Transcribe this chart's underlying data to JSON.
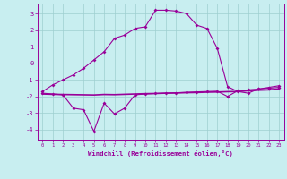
{
  "xlabel": "Windchill (Refroidissement éolien,°C)",
  "background_color": "#c8eef0",
  "grid_color": "#9ecfcf",
  "line_color": "#990099",
  "xlim": [
    -0.5,
    23.5
  ],
  "ylim": [
    -4.6,
    3.6
  ],
  "xticks": [
    0,
    1,
    2,
    3,
    4,
    5,
    6,
    7,
    8,
    9,
    10,
    11,
    12,
    13,
    14,
    15,
    16,
    17,
    18,
    19,
    20,
    21,
    22,
    23
  ],
  "yticks": [
    -4,
    -3,
    -2,
    -1,
    0,
    1,
    2,
    3
  ],
  "line1_x": [
    0,
    1,
    2,
    3,
    4,
    5,
    6,
    7,
    8,
    9,
    10,
    11,
    12,
    13,
    14,
    15,
    16,
    17,
    18,
    19,
    20,
    21,
    22,
    23
  ],
  "line1_y": [
    -1.7,
    -1.3,
    -1.0,
    -0.7,
    -0.3,
    0.2,
    0.7,
    1.5,
    1.7,
    2.1,
    2.2,
    3.2,
    3.2,
    3.15,
    3.0,
    2.3,
    2.1,
    0.9,
    -1.4,
    -1.7,
    -1.8,
    -1.55,
    -1.45,
    -1.35
  ],
  "line2_x": [
    0,
    1,
    2,
    3,
    4,
    5,
    6,
    7,
    8,
    9,
    10,
    11,
    12,
    13,
    14,
    15,
    16,
    17,
    18,
    19,
    20,
    21,
    22,
    23
  ],
  "line2_y": [
    -1.8,
    -1.85,
    -1.9,
    -2.7,
    -2.8,
    -4.1,
    -2.4,
    -3.05,
    -2.7,
    -1.9,
    -1.85,
    -1.82,
    -1.8,
    -1.78,
    -1.75,
    -1.72,
    -1.7,
    -1.68,
    -2.0,
    -1.65,
    -1.6,
    -1.55,
    -1.5,
    -1.45
  ],
  "line3_x": [
    0,
    1,
    2,
    3,
    4,
    5,
    6,
    7,
    8,
    9,
    10,
    11,
    12,
    13,
    14,
    15,
    16,
    17,
    18,
    19,
    20,
    21,
    22,
    23
  ],
  "line3_y": [
    -1.85,
    -1.87,
    -1.88,
    -1.89,
    -1.9,
    -1.91,
    -1.88,
    -1.89,
    -1.87,
    -1.85,
    -1.83,
    -1.82,
    -1.8,
    -1.79,
    -1.77,
    -1.76,
    -1.74,
    -1.73,
    -1.71,
    -1.7,
    -1.65,
    -1.62,
    -1.6,
    -1.55
  ]
}
